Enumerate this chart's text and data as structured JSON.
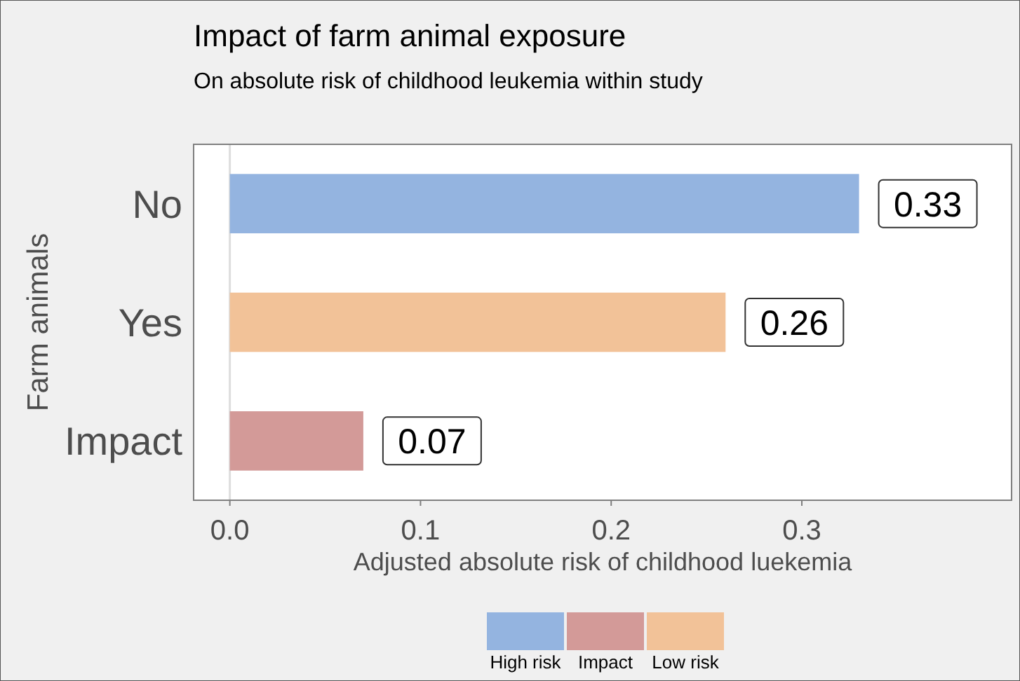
{
  "chart_data": {
    "type": "bar",
    "orientation": "horizontal",
    "title": "Impact of farm animal exposure",
    "subtitle": "On absolute risk of childhood leukemia within study",
    "xlabel": "Adjusted absolute risk of childhood luekemia",
    "ylabel": "Farm animals",
    "categories": [
      "No",
      "Yes",
      "Impact"
    ],
    "series": [
      {
        "name": "High risk",
        "color": "#94b4e0",
        "values": [
          0.33,
          null,
          null
        ]
      },
      {
        "name": "Impact",
        "color": "#d39a98",
        "values": [
          null,
          null,
          0.07
        ]
      },
      {
        "name": "Low risk",
        "color": "#f2c298",
        "values": [
          null,
          0.26,
          null
        ]
      }
    ],
    "xlim": [
      -0.019,
      0.41
    ],
    "xticks": [
      {
        "value": 0,
        "label": "0.0"
      },
      0.1,
      0.2,
      0.3
    ],
    "data_labels": true,
    "legend": "bottom",
    "grid": false,
    "ref_lines": [
      {
        "axis": "x",
        "value": 0,
        "color": "#dddddd"
      }
    ]
  }
}
